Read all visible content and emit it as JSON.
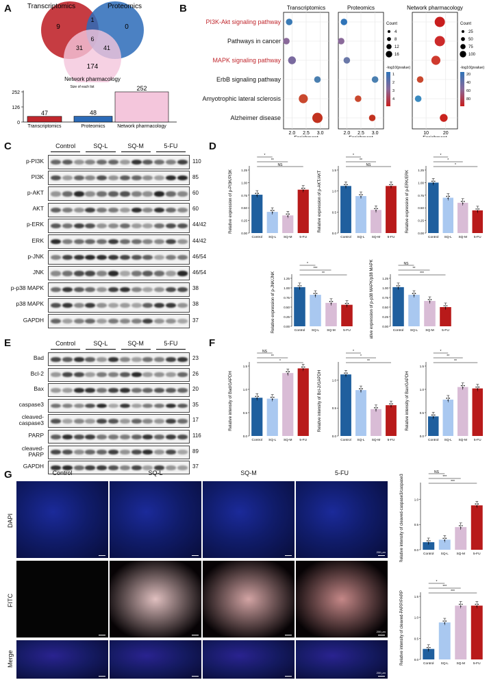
{
  "panels": {
    "A": "A",
    "B": "B",
    "C": "C",
    "D": "D",
    "E": "E",
    "F": "F",
    "G": "G"
  },
  "venn": {
    "sets": [
      "Transcriptomics",
      "Proteomics",
      "Network pharmacology"
    ],
    "regions": {
      "t_only": "9",
      "t_p": "1",
      "p_only": "0",
      "t_p_n": "6",
      "t_n": "31",
      "p_n": "41",
      "n_only": "174"
    },
    "size_title": "Size of each list",
    "bars": [
      {
        "name": "Transcriptomics",
        "value": 47,
        "color": "#c0272d"
      },
      {
        "name": "Proteomics",
        "value": 48,
        "color": "#2c6bb8"
      },
      {
        "name": "Network pharmacology",
        "value": 252,
        "color": "#f4c6dc"
      }
    ],
    "ticks": [
      "252",
      "126",
      "0"
    ]
  },
  "dotplot": {
    "pathways": [
      {
        "name": "PI3K-Akt signaling pathway",
        "highlight": true
      },
      {
        "name": "Pathways in cancer",
        "highlight": false
      },
      {
        "name": "MAPK signaling pathway",
        "highlight": true
      },
      {
        "name": "ErbB signaling pathway",
        "highlight": false
      },
      {
        "name": "Amyotrophic lateral sclerosis",
        "highlight": false
      },
      {
        "name": "Alzheimer disease",
        "highlight": false
      }
    ],
    "facets": [
      {
        "title": "Transcriptomics",
        "xticks": [
          "2.0",
          "2.5",
          "3.0"
        ],
        "xlim": [
          1.7,
          3.3
        ],
        "points": [
          [
            1.9,
            0,
            2,
            "#3a7ab5"
          ],
          [
            1.8,
            1,
            2,
            "#8a6a9a"
          ],
          [
            2.0,
            2,
            3,
            "#7a6a9f"
          ],
          [
            2.9,
            3,
            2,
            "#4a7fb0"
          ],
          [
            2.4,
            4,
            4,
            "#c9482e"
          ],
          [
            2.9,
            5,
            5,
            "#c2321f"
          ]
        ]
      },
      {
        "title": "Proteomics",
        "xticks": [
          "2.0",
          "2.5",
          "3.0"
        ],
        "xlim": [
          1.7,
          3.3
        ],
        "points": [
          [
            1.9,
            0,
            2,
            "#2f74b8"
          ],
          [
            1.8,
            1,
            2,
            "#8a6a9a"
          ],
          [
            2.0,
            2,
            2,
            "#6a78a8"
          ],
          [
            3.0,
            3,
            2,
            "#4a7fb0"
          ],
          [
            2.4,
            4,
            2,
            "#c9482e"
          ],
          [
            2.9,
            5,
            2,
            "#c2321f"
          ]
        ]
      },
      {
        "title": "Network pharmacology",
        "xticks": [
          "10",
          "20"
        ],
        "xlim": [
          3,
          26
        ],
        "points": [
          [
            17,
            0,
            5,
            "#c81e1e"
          ],
          [
            17,
            1,
            5,
            "#cc2a2a"
          ],
          [
            15,
            2,
            4,
            "#cf3a2e"
          ],
          [
            7,
            3,
            2,
            "#c9482e"
          ],
          [
            6,
            4,
            2,
            "#3a8ac0"
          ],
          [
            19,
            5,
            3,
            "#c9231e"
          ]
        ]
      }
    ],
    "legend1": {
      "title": "Count",
      "values": [
        "4",
        "8",
        "12",
        "16"
      ],
      "pvalue_title": "-log10(pvalue)",
      "pvalue_ticks": [
        "1",
        "2",
        "3",
        "4"
      ]
    },
    "legend2": {
      "title": "Count",
      "values": [
        "25",
        "50",
        "75",
        "100"
      ],
      "pvalue_title": "-log10(pvalue)",
      "pvalue_ticks": [
        "20",
        "40",
        "60",
        "80"
      ]
    },
    "xlabel": "Enrichment"
  },
  "westernC": {
    "groups": [
      "Control",
      "SQ-L",
      "SQ-M",
      "5-FU"
    ],
    "rows": [
      {
        "name": "p-PI3K",
        "kda": "110"
      },
      {
        "name": "PI3K",
        "kda": "85"
      },
      {
        "name": "p-AKT",
        "kda": "60"
      },
      {
        "name": "AKT",
        "kda": "60"
      },
      {
        "name": "p-ERK",
        "kda": "44/42"
      },
      {
        "name": "ERK",
        "kda": "44/42"
      },
      {
        "name": "p-JNK",
        "kda": "46/54"
      },
      {
        "name": "JNK",
        "kda": "46/54"
      },
      {
        "name": "p-p38 MAPK",
        "kda": "38"
      },
      {
        "name": "p38 MAPK",
        "kda": "38"
      },
      {
        "name": "GAPDH",
        "kda": "37"
      }
    ]
  },
  "westernE": {
    "groups": [
      "Control",
      "SQ-L",
      "SQ-M",
      "5-FU"
    ],
    "rows": [
      {
        "name": "Bad",
        "kda": "23"
      },
      {
        "name": "Bcl-2",
        "kda": "26"
      },
      {
        "name": "Bax",
        "kda": "20"
      },
      {
        "name": "caspase3",
        "kda": "35"
      },
      {
        "name": "cleaved-\ncaspase3",
        "kda": "17"
      },
      {
        "name": "PARP",
        "kda": "116"
      },
      {
        "name": "cleaved-\nPARP",
        "kda": "89"
      },
      {
        "name": "GAPDH",
        "kda": "37"
      }
    ]
  },
  "barcharts": {
    "categories": [
      "Control",
      "SQ-L",
      "SQ-M",
      "5-FU"
    ],
    "colors": [
      "#1f5f9e",
      "#a9c8f0",
      "#d9bcd6",
      "#b81a1a"
    ],
    "D": [
      {
        "ylabel": "Relative expression of p-PI3K/PI3K",
        "ymax": 1.25,
        "yticks": [
          "0.00",
          "0.25",
          "0.50",
          "0.75",
          "1.00",
          "1.25"
        ],
        "values": [
          0.76,
          0.42,
          0.35,
          0.86
        ],
        "sig": [
          [
            "*",
            0,
            1
          ],
          [
            "**",
            0,
            2
          ],
          [
            "NS",
            0,
            3
          ]
        ]
      },
      {
        "ylabel": "Relative expression of p-AKT/AKT",
        "ymax": 1.5,
        "yticks": [
          "0.0",
          "0.5",
          "1.0",
          "1.5"
        ],
        "values": [
          1.12,
          0.88,
          0.55,
          1.12
        ],
        "sig": [
          [
            "*",
            0,
            1
          ],
          [
            "**",
            0,
            2
          ],
          [
            "NS",
            0,
            3
          ]
        ]
      },
      {
        "ylabel": "Relative expression of p-ERK/ERK",
        "ymax": 1.25,
        "yticks": [
          "0.00",
          "0.25",
          "0.50",
          "0.75",
          "1.00",
          "1.25"
        ],
        "values": [
          1.0,
          0.7,
          0.6,
          0.45
        ],
        "sig": [
          [
            "*",
            0,
            1
          ],
          [
            "*",
            0,
            2
          ],
          [
            "*",
            0,
            3
          ]
        ]
      },
      {
        "ylabel": "Relative expression of p-JNK/JNK",
        "ymax": 1.25,
        "yticks": [
          "0.00",
          "0.25",
          "0.50",
          "0.75",
          "1.00",
          "1.25"
        ],
        "values": [
          1.02,
          0.82,
          0.61,
          0.56
        ],
        "sig": [
          [
            "*",
            0,
            1
          ],
          [
            "***",
            0,
            2
          ],
          [
            "**",
            0,
            3
          ]
        ]
      },
      {
        "ylabel": "Relative expression of p-p38 MAPK/p38 MAPK",
        "ymax": 1.25,
        "yticks": [
          "0.00",
          "0.25",
          "0.50",
          "0.75",
          "1.00",
          "1.25"
        ],
        "values": [
          1.02,
          0.82,
          0.66,
          0.5
        ],
        "sig": [
          [
            "NS",
            0,
            1
          ],
          [
            "**",
            0,
            2
          ],
          [
            "***",
            0,
            3
          ]
        ]
      }
    ],
    "F": [
      {
        "ylabel": "Relative intensity of Bad/GAPDH",
        "ymax": 1.5,
        "yticks": [
          "0.0",
          "0.5",
          "1.0",
          "1.5"
        ],
        "values": [
          0.82,
          0.8,
          1.35,
          1.45
        ],
        "sig": [
          [
            "NS",
            0,
            1
          ],
          [
            "**",
            0,
            2
          ],
          [
            "*",
            0,
            3
          ]
        ]
      },
      {
        "ylabel": "Relative intensity of Bcl-2/GAPDH",
        "ymax": 1.25,
        "yticks": [
          "0.0",
          "0.5",
          "1.0"
        ],
        "values": [
          1.1,
          0.82,
          0.48,
          0.55
        ],
        "sig": [
          [
            "*",
            0,
            1
          ],
          [
            "*",
            0,
            2
          ],
          [
            "**",
            0,
            3
          ]
        ]
      },
      {
        "ylabel": "Relative intensity of Bax/GAPDH",
        "ymax": 1.5,
        "yticks": [
          "0.0",
          "0.5",
          "1.0",
          "1.5"
        ],
        "values": [
          0.42,
          0.78,
          1.05,
          1.02
        ],
        "sig": [
          [
            "*",
            0,
            1
          ],
          [
            "**",
            0,
            2
          ],
          [
            "**",
            0,
            3
          ]
        ]
      }
    ],
    "G": [
      {
        "ylabel": "Relative intensity of cleaved-caspase3/caspase3",
        "ymax": 1.25,
        "yticks": [
          "0.0",
          "0.5",
          "1.0"
        ],
        "values": [
          0.15,
          0.2,
          0.45,
          0.88
        ],
        "sig": [
          [
            "NS",
            0,
            1
          ],
          [
            "***",
            0,
            2
          ],
          [
            "***",
            0,
            3
          ]
        ]
      },
      {
        "ylabel": "Relative intensity of cleaved-PARP/PARP",
        "ymax": 1.5,
        "yticks": [
          "0.0",
          "0.5",
          "1.0",
          "1.5"
        ],
        "values": [
          0.25,
          0.88,
          1.28,
          1.28
        ],
        "sig": [
          [
            "*",
            0,
            1
          ],
          [
            "***",
            0,
            2
          ],
          [
            "***",
            0,
            3
          ]
        ]
      }
    ]
  },
  "micro": {
    "columns": [
      "Control",
      "SQ-L",
      "SQ-M",
      "5-FU"
    ],
    "rows": [
      "DAPI",
      "FITC",
      "Merge"
    ],
    "scale": "200 μm"
  }
}
